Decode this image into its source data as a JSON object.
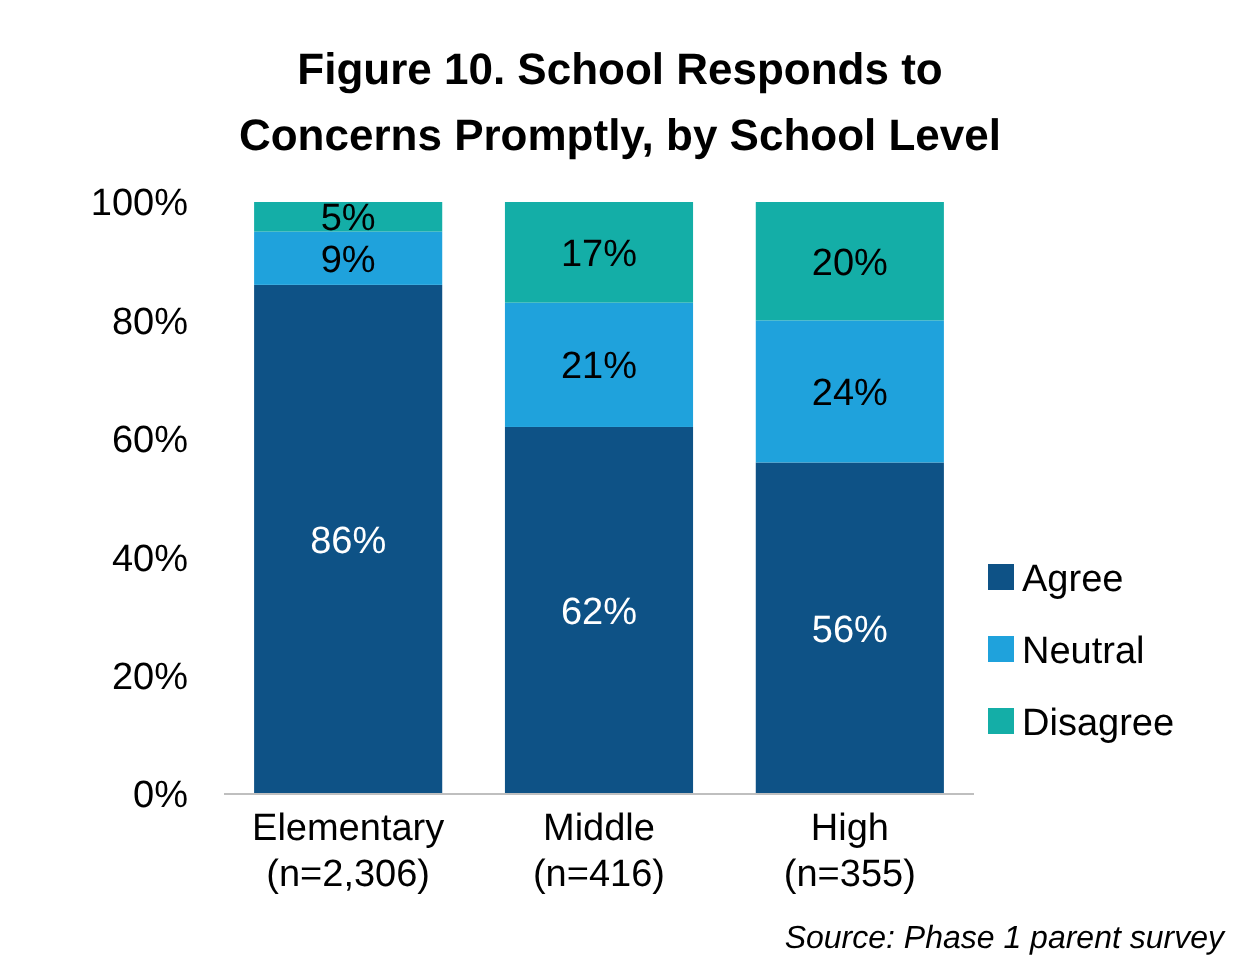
{
  "chart_data": {
    "type": "bar",
    "title": "Figure 10. School Responds to\nConcerns Promptly, by School Level",
    "categories": [
      "Elementary\n(n=2,306)",
      "Middle\n(n=416)",
      "High\n(n=355)"
    ],
    "stacked": true,
    "series": [
      {
        "name": "Agree",
        "color": "#0e5286",
        "values": [
          86,
          62,
          56
        ],
        "value_labels": [
          "86%",
          "62%",
          "56%"
        ]
      },
      {
        "name": "Neutral",
        "color": "#1fa2dc",
        "values": [
          9,
          21,
          24
        ],
        "value_labels": [
          "9%",
          "21%",
          "24%"
        ]
      },
      {
        "name": "Disagree",
        "color": "#14aea7",
        "values": [
          5,
          17,
          20
        ],
        "value_labels": [
          "5%",
          "17%",
          "20%"
        ]
      }
    ],
    "ylim": [
      0,
      100
    ],
    "yticks": [
      {
        "value": 0,
        "label": "0%"
      },
      {
        "value": 20,
        "label": "20%"
      },
      {
        "value": 40,
        "label": "40%"
      },
      {
        "value": 60,
        "label": "60%"
      },
      {
        "value": 80,
        "label": "80%"
      },
      {
        "value": 100,
        "label": "100%"
      }
    ],
    "legend": "right",
    "annotations": [
      "Source: Phase 1 parent survey"
    ]
  }
}
